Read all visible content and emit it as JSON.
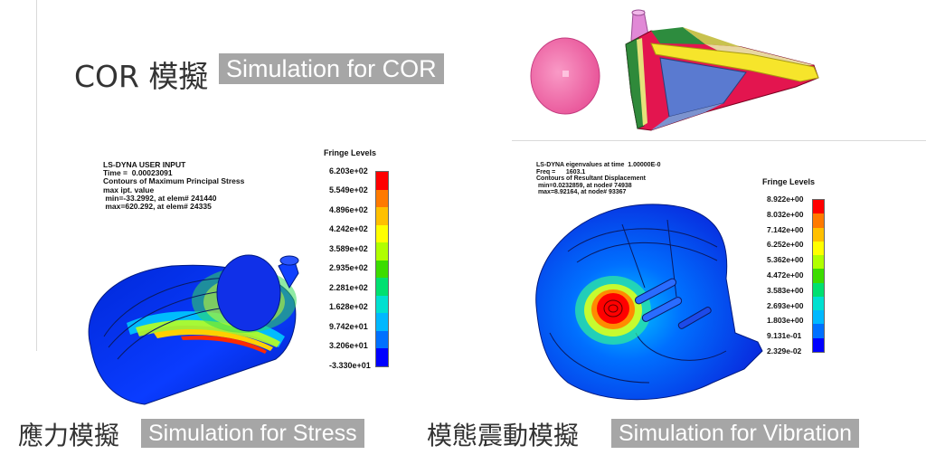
{
  "cor": {
    "zh": "COR 模擬",
    "en": "Simulation for COR"
  },
  "stress": {
    "zh": "應力模擬",
    "en": "Simulation for Stress",
    "header_lines": [
      "LS-DYNA USER INPUT",
      "Time =  0.00023091",
      "Contours of Maximum Principal Stress",
      "max ipt. value",
      " min=-33.2992, at elem# 241440",
      " max=620.292, at elem# 24335"
    ],
    "fringe_title": "Fringe Levels",
    "levels": [
      "6.203e+02",
      "5.549e+02",
      "4.896e+02",
      "4.242e+02",
      "3.589e+02",
      "2.935e+02",
      "2.281e+02",
      "1.628e+02",
      "9.742e+01",
      "3.206e+01",
      "-3.330e+01"
    ],
    "colors": [
      "#ff0000",
      "#ff7a00",
      "#ffc000",
      "#ffff00",
      "#b0ff00",
      "#3cdc00",
      "#00e070",
      "#00e0d0",
      "#00b8ff",
      "#0070ff",
      "#0000ff"
    ]
  },
  "vibration": {
    "zh": "模態震動模擬",
    "en": "Simulation for Vibration",
    "header_lines": [
      "LS-DYNA eigenvalues at time  1.00000E-0",
      "Freq =      1603.1",
      "Contours of Resultant Displacement",
      " min=0.0232859, at node# 74938",
      " max=8.92164, at node# 93367"
    ],
    "fringe_title": "Fringe Levels",
    "levels": [
      "8.922e+00",
      "8.032e+00",
      "7.142e+00",
      "6.252e+00",
      "5.362e+00",
      "4.472e+00",
      "3.583e+00",
      "2.693e+00",
      "1.803e+00",
      "9.131e-01",
      "2.329e-02"
    ],
    "colors": [
      "#ff0000",
      "#ff7a00",
      "#ffc000",
      "#ffff00",
      "#b0ff00",
      "#3cdc00",
      "#00e070",
      "#00e0d0",
      "#00b8ff",
      "#0070ff",
      "#0000ff"
    ]
  }
}
